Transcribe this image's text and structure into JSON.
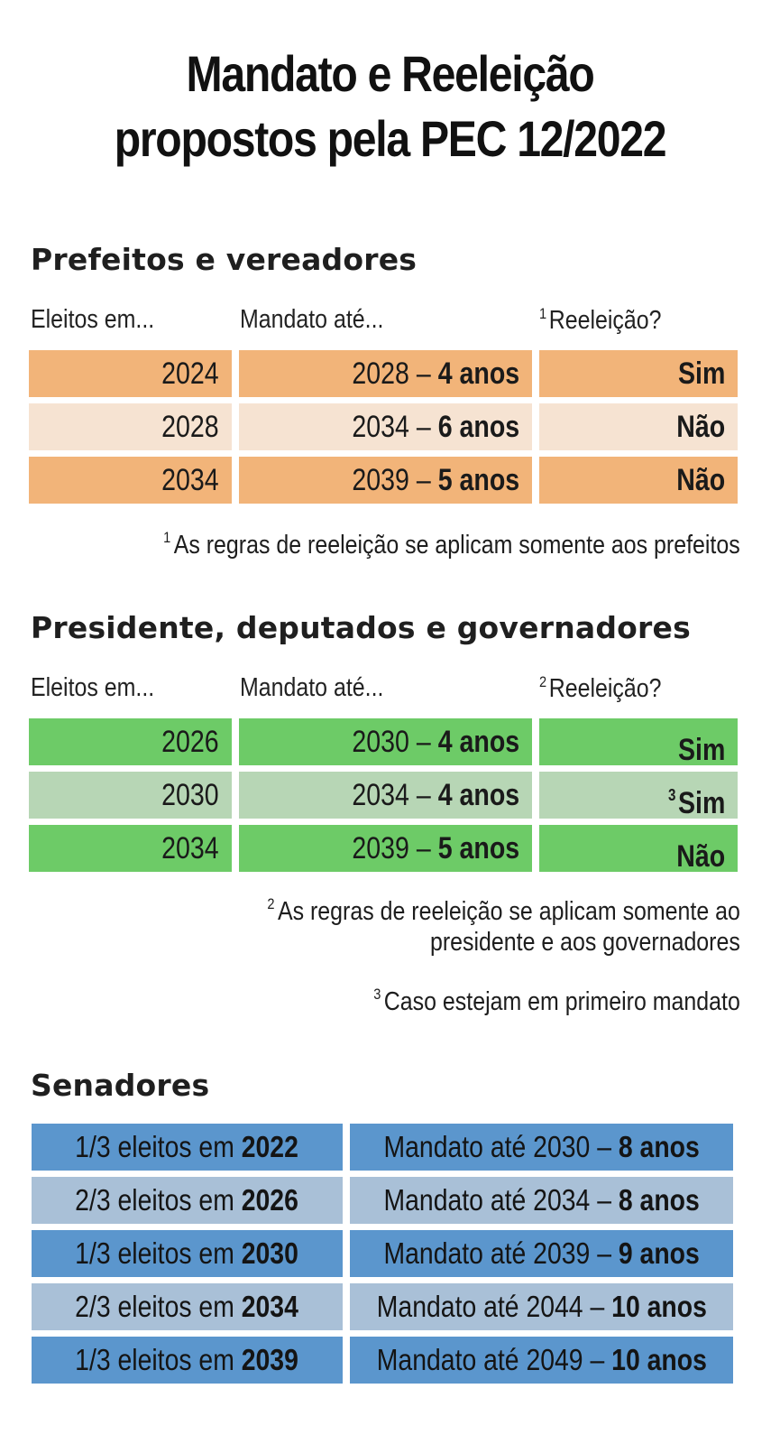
{
  "title": {
    "line1": "Mandato e Reeleição",
    "line2": "propostos pela PEC 12/2022"
  },
  "prefeitos": {
    "heading": "Prefeitos e vereadores",
    "col_eleitos": "Eleitos em...",
    "col_mandato": "Mandato até...",
    "col_reeleicao_marker": "1",
    "col_reeleicao": "Reeleição?",
    "rows": [
      {
        "eleitos": "2024",
        "mandato_year": "2028 –",
        "mandato_years": "4 anos",
        "reeleicao": "Sim"
      },
      {
        "eleitos": "2028",
        "mandato_year": "2034 –",
        "mandato_years": "6 anos",
        "reeleicao": "Não"
      },
      {
        "eleitos": "2034",
        "mandato_year": "2039 –",
        "mandato_years": "5 anos",
        "reeleicao": "Não"
      }
    ],
    "note_marker": "1",
    "note": "As regras de reeleição se aplicam somente aos prefeitos"
  },
  "presidente": {
    "heading": "Presidente, deputados e governadores",
    "col_eleitos": "Eleitos em...",
    "col_mandato": "Mandato até...",
    "col_reeleicao_marker": "2",
    "col_reeleicao": "Reeleição?",
    "rows": [
      {
        "eleitos": "2026",
        "mandato_year": "2030 –",
        "mandato_years": "4 anos",
        "reeleicao_marker": "",
        "reeleicao": "Sim"
      },
      {
        "eleitos": "2030",
        "mandato_year": "2034 –",
        "mandato_years": "4 anos",
        "reeleicao_marker": "3",
        "reeleicao": "Sim"
      },
      {
        "eleitos": "2034",
        "mandato_year": "2039 –",
        "mandato_years": "5 anos",
        "reeleicao_marker": "",
        "reeleicao": "Não"
      }
    ],
    "note2_marker": "2",
    "note2_line1": "As regras de reeleição se aplicam somente ao",
    "note2_line2": "presidente e aos governadores",
    "note3_marker": "3",
    "note3": "Caso estejam em primeiro mandato"
  },
  "senadores": {
    "heading": "Senadores",
    "rows": [
      {
        "fraction": "1/3 eleitos em",
        "year": "2022",
        "mandato_text": "Mandato até 2030 –",
        "mandato_years": "8 anos"
      },
      {
        "fraction": "2/3 eleitos em",
        "year": "2026",
        "mandato_text": "Mandato até 2034 –",
        "mandato_years": "8 anos"
      },
      {
        "fraction": "1/3 eleitos em",
        "year": "2030",
        "mandato_text": "Mandato até 2039 –",
        "mandato_years": "9 anos"
      },
      {
        "fraction": "2/3 eleitos em",
        "year": "2034",
        "mandato_text": "Mandato até 2044 –",
        "mandato_years": "10 anos"
      },
      {
        "fraction": "1/3 eleitos em",
        "year": "2039",
        "mandato_text": "Mandato até 2049 –",
        "mandato_years": "10 anos"
      }
    ]
  },
  "colors": {
    "orange_strong": "#f2b479",
    "orange_light": "#f6e3d2",
    "green_strong": "#6dcb67",
    "green_light": "#b7d6b5",
    "blue_strong": "#5b96cd",
    "blue_light": "#a9c0d7"
  }
}
